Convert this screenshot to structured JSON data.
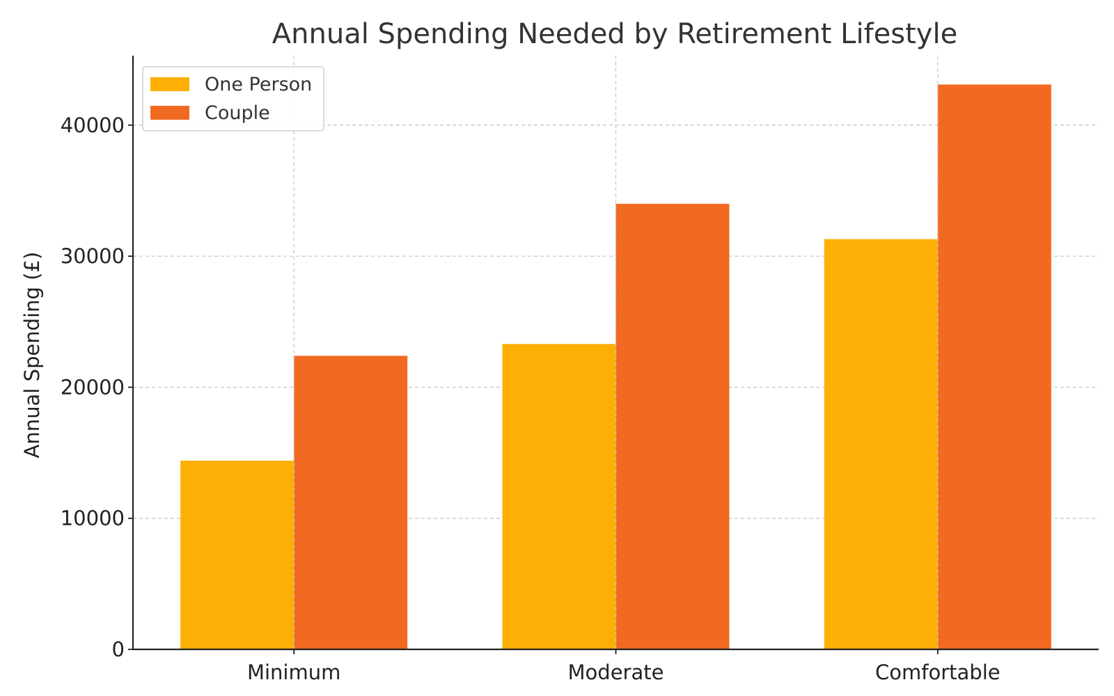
{
  "chart_data": {
    "type": "bar",
    "title": "Annual Spending Needed by Retirement Lifestyle",
    "xlabel": "",
    "ylabel": "Annual Spending (£)",
    "categories": [
      "Minimum",
      "Moderate",
      "Comfortable"
    ],
    "series": [
      {
        "name": "One Person",
        "values": [
          14400,
          23300,
          31300
        ],
        "color": "#FDAF06"
      },
      {
        "name": "Couple",
        "values": [
          22400,
          34000,
          43100
        ],
        "color": "#F26A22"
      }
    ],
    "ylim": [
      0,
      45300
    ],
    "yticks": [
      0,
      10000,
      20000,
      30000,
      40000
    ],
    "ytick_labels": [
      "0",
      "10000",
      "20000",
      "30000",
      "40000"
    ],
    "grid": true,
    "legend_position": "top-left"
  }
}
